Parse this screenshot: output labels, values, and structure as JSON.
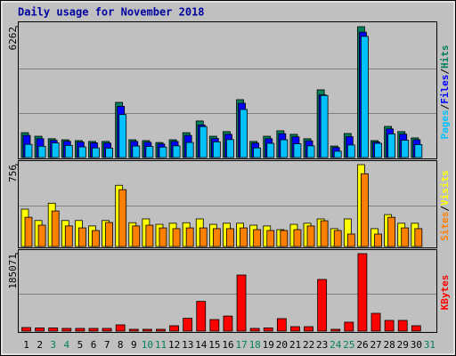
{
  "chart_data": [
    {
      "type": "bar",
      "title": "Daily usage for November 2018",
      "ylim": [
        0,
        6262
      ],
      "yticks": [
        6262
      ],
      "legend_separator": "/",
      "series": [
        {
          "name": "Hits",
          "color": "#00805c",
          "values": [
            1190,
            1020,
            900,
            850,
            810,
            770,
            770,
            2640,
            850,
            810,
            720,
            850,
            1190,
            1750,
            1020,
            1240,
            2770,
            770,
            1020,
            1280,
            1110,
            900,
            3240,
            550,
            1150,
            6262,
            810,
            1490,
            1240,
            940,
            0
          ]
        },
        {
          "name": "Files",
          "color": "#0000ff",
          "values": [
            1060,
            900,
            820,
            780,
            740,
            700,
            690,
            2450,
            770,
            730,
            650,
            770,
            1060,
            1560,
            910,
            1110,
            2600,
            690,
            900,
            1140,
            990,
            800,
            3000,
            480,
            1000,
            6000,
            740,
            1370,
            1120,
            850,
            0
          ]
        },
        {
          "name": "Pages",
          "color": "#00c0ff",
          "values": [
            630,
            540,
            700,
            580,
            510,
            460,
            450,
            2060,
            550,
            530,
            500,
            560,
            720,
            1480,
            750,
            860,
            2300,
            460,
            680,
            850,
            660,
            560,
            2970,
            300,
            600,
            5800,
            680,
            1130,
            830,
            620,
            0
          ]
        }
      ]
    },
    {
      "type": "bar",
      "ylim": [
        0,
        756
      ],
      "yticks": [
        756
      ],
      "legend_separator": "/",
      "series": [
        {
          "name": "Visits",
          "color": "#ffff00",
          "values": [
            345,
            240,
            400,
            240,
            240,
            190,
            240,
            565,
            220,
            255,
            205,
            215,
            220,
            255,
            205,
            215,
            215,
            197,
            190,
            156,
            205,
            215,
            255,
            165,
            255,
            756,
            165,
            295,
            215,
            215,
            0
          ]
        },
        {
          "name": "Sites",
          "color": "#ff8000",
          "values": [
            270,
            197,
            328,
            190,
            172,
            148,
            222,
            525,
            190,
            197,
            172,
            165,
            172,
            172,
            165,
            165,
            172,
            156,
            148,
            148,
            156,
            190,
            238,
            148,
            115,
            672,
            115,
            270,
            172,
            165,
            0
          ]
        }
      ]
    },
    {
      "type": "bar",
      "ylim": [
        0,
        185071
      ],
      "yticks": [
        185071
      ],
      "categories": [
        "1",
        "2",
        "3",
        "4",
        "5",
        "6",
        "7",
        "8",
        "9",
        "10",
        "11",
        "12",
        "13",
        "14",
        "15",
        "16",
        "17",
        "18",
        "19",
        "20",
        "21",
        "22",
        "23",
        "24",
        "25",
        "26",
        "27",
        "28",
        "29",
        "30",
        "31"
      ],
      "category_colors": [
        "#000000",
        "#000000",
        "#00805c",
        "#00805c",
        "#000000",
        "#000000",
        "#000000",
        "#000000",
        "#000000",
        "#00805c",
        "#00805c",
        "#000000",
        "#000000",
        "#000000",
        "#000000",
        "#000000",
        "#00805c",
        "#00805c",
        "#000000",
        "#000000",
        "#000000",
        "#000000",
        "#000000",
        "#00805c",
        "#00805c",
        "#000000",
        "#000000",
        "#000000",
        "#000000",
        "#000000",
        "#00805c"
      ],
      "series": [
        {
          "name": "KBytes",
          "color": "#ff0000",
          "values": [
            8500,
            7500,
            7500,
            6400,
            6400,
            6400,
            6400,
            14900,
            4300,
            4300,
            4300,
            12800,
            30600,
            71000,
            27600,
            36000,
            134000,
            6400,
            7500,
            29800,
            10600,
            10600,
            123400,
            4300,
            21300,
            185071,
            42500,
            25500,
            25500,
            12800,
            0
          ]
        }
      ]
    }
  ]
}
